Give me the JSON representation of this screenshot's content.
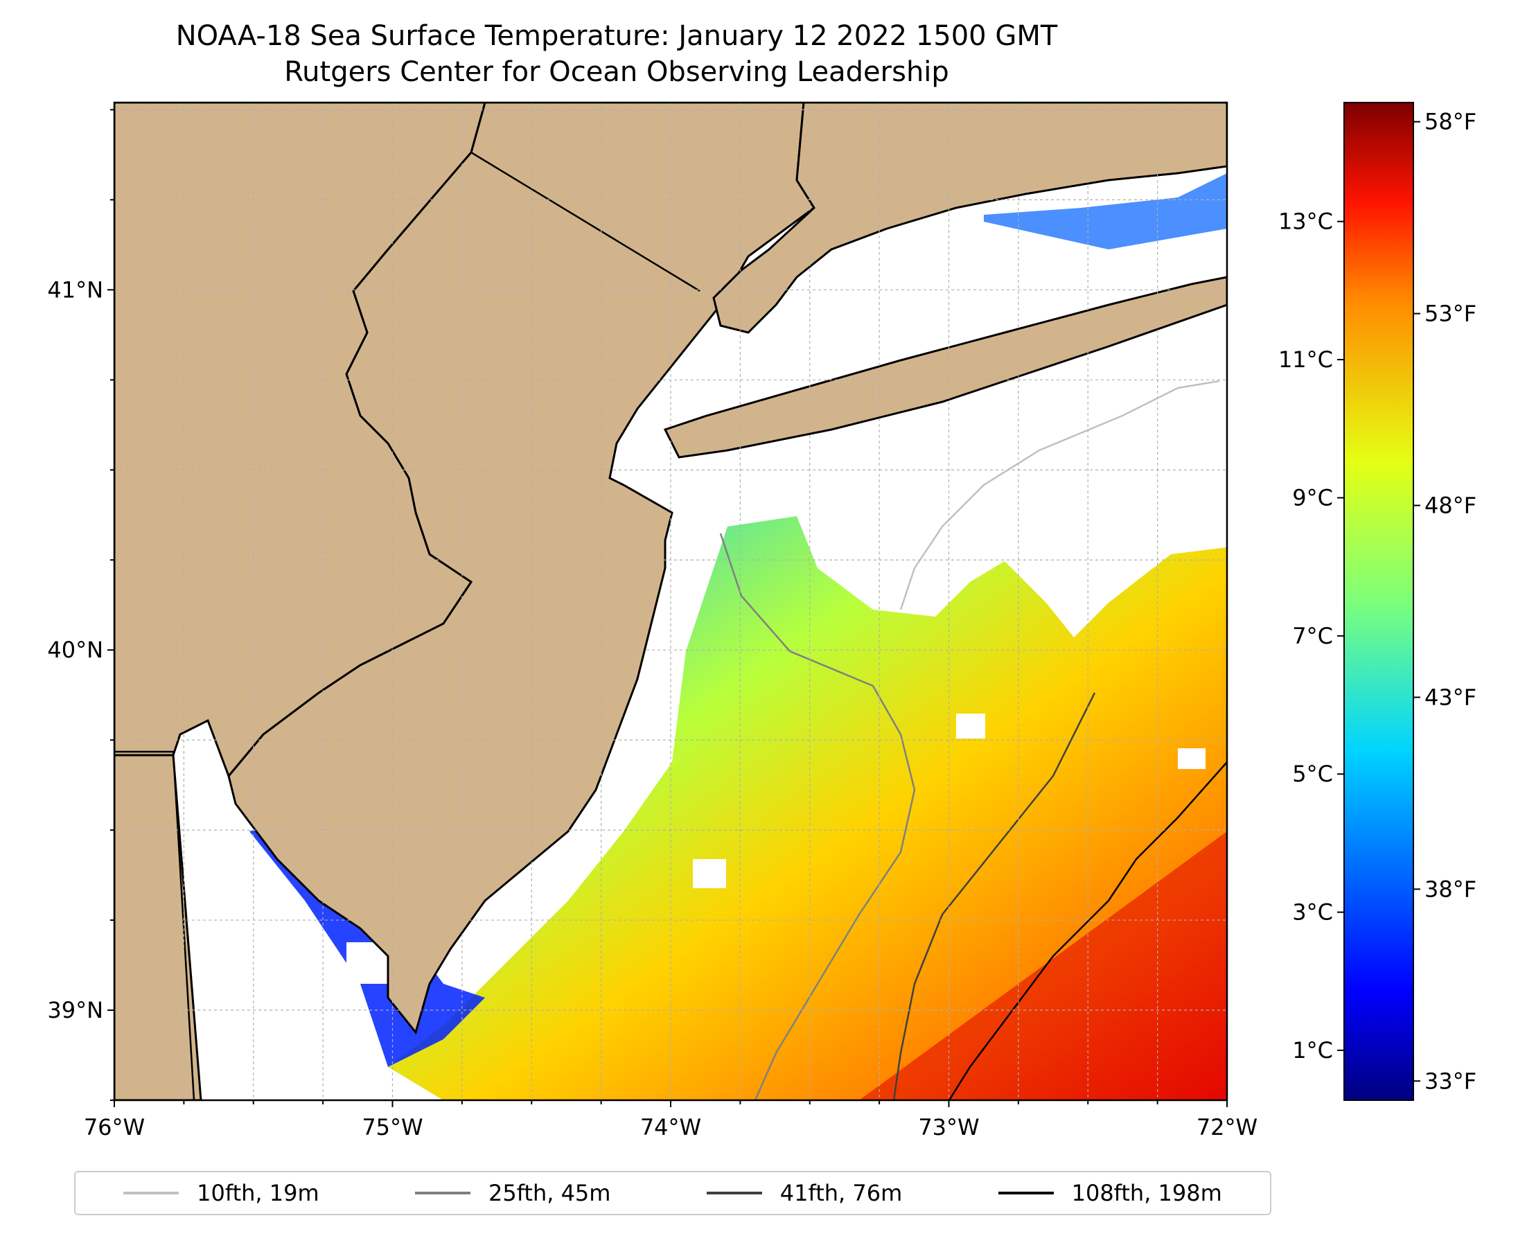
{
  "title": {
    "line1": "NOAA-18 Sea Surface Temperature: January 12 2022 1500 GMT",
    "line2": "Rutgers Center for Ocean Observing Leadership"
  },
  "map": {
    "lon_range": [
      -76,
      -72
    ],
    "lat_range": [
      38.75,
      41.52
    ],
    "lon_ticks": [
      "76°W",
      "75°W",
      "74°W",
      "73°W",
      "72°W"
    ],
    "lat_ticks": [
      "41°N",
      "40°N",
      "39°N"
    ],
    "land_color": "#d2b48c",
    "grid": true
  },
  "colorbar": {
    "colormap": "jet",
    "celsius_ticks": [
      "13°C",
      "11°C",
      "9°C",
      "7°C",
      "5°C",
      "3°C",
      "1°C"
    ],
    "fahrenheit_ticks": [
      "58°F",
      "53°F",
      "48°F",
      "43°F",
      "38°F",
      "33°F"
    ]
  },
  "legend": {
    "items": [
      {
        "label": "10fth, 19m",
        "color": "#c0c0c0"
      },
      {
        "label": "25fth, 45m",
        "color": "#808080"
      },
      {
        "label": "41fth, 76m",
        "color": "#404040"
      },
      {
        "label": "108fth, 198m",
        "color": "#000000"
      }
    ]
  }
}
